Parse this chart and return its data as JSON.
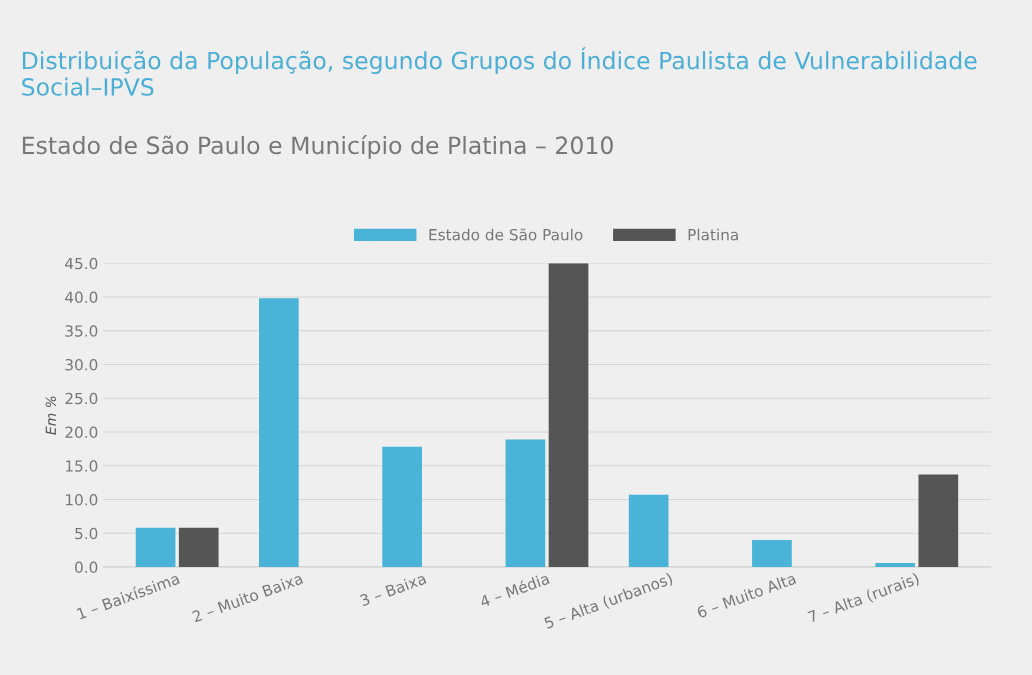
{
  "chart_data": {
    "type": "bar",
    "title": "Distribuição da População, segundo Grupos do Índice Paulista de Vulnerabilidade Social–IPVS",
    "subtitle": "Estado de São Paulo e Município de Platina – 2010",
    "ylabel": "Em %",
    "categories": [
      "1 – Baixíssima",
      "2 – Muito Baixa",
      "3 – Baixa",
      "4 – Média",
      "5 – Alta (urbanos)",
      "6 – Muito Alta",
      "7 – Alta (rurais)"
    ],
    "series": [
      {
        "name": "Estado de São Paulo",
        "color": "#4ab3d8",
        "values": [
          5.8,
          39.8,
          17.8,
          18.9,
          10.7,
          4.0,
          0.6
        ]
      },
      {
        "name": "Platina",
        "color": "#555555",
        "values": [
          5.8,
          0,
          0,
          45.0,
          0,
          0,
          13.7
        ]
      }
    ],
    "ylim": [
      0,
      45
    ],
    "yticks": [
      {
        "value": 0,
        "label": "0.0"
      },
      {
        "value": 5,
        "label": "5.0"
      },
      {
        "value": 10,
        "label": "10.0"
      },
      {
        "value": 15,
        "label": "15.0"
      },
      {
        "value": 20,
        "label": "20.0"
      },
      {
        "value": 25,
        "label": "25.0"
      },
      {
        "value": 30,
        "label": "30.0"
      },
      {
        "value": 35,
        "label": "35.0"
      },
      {
        "value": 40,
        "label": "40.0"
      },
      {
        "value": 45,
        "label": "45.0"
      }
    ],
    "grid": "y",
    "legend": "top"
  }
}
